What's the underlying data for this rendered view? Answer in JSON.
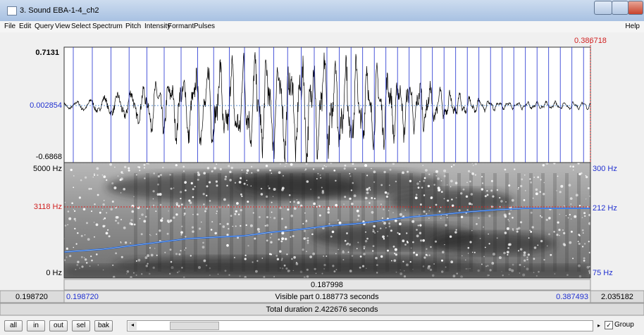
{
  "window": {
    "title": "3. Sound EBA-1-4_ch2",
    "menu": [
      "File",
      "Edit",
      "Query",
      "View",
      "Select",
      "Spectrum",
      "Pitch",
      "Intensity",
      "Formant",
      "Pulses"
    ],
    "help": "Help"
  },
  "cursor_time": "0.386718",
  "waveform": {
    "max": "0.7131",
    "cursor_value": "0.002854",
    "min": "-0.6868"
  },
  "spectrogram": {
    "top": "5000 Hz",
    "cursor": "3118 Hz",
    "bottom": "0 Hz"
  },
  "pitch": {
    "top": "300 Hz",
    "cursor": "212 Hz",
    "bottom": "75 Hz"
  },
  "selection_duration": "0.187998",
  "time_bar": {
    "left": "0.198720",
    "start": "0.198720",
    "visible": "Visible part 0.188773 seconds",
    "end": "0.387493",
    "right": "2.035182"
  },
  "total": "Total duration 2.422676 seconds",
  "buttons": [
    "all",
    "in",
    "out",
    "sel",
    "bak"
  ],
  "group": "Group"
}
